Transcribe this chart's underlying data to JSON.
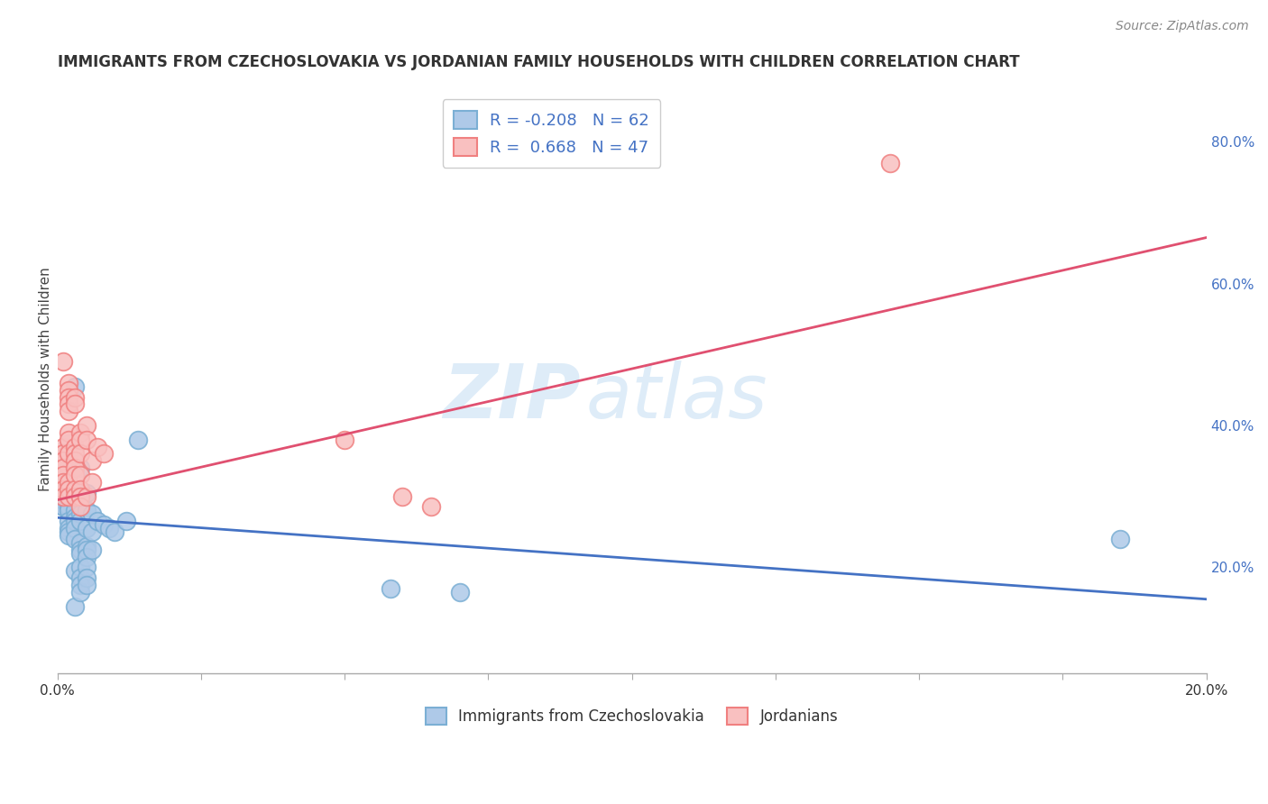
{
  "title": "IMMIGRANTS FROM CZECHOSLOVAKIA VS JORDANIAN FAMILY HOUSEHOLDS WITH CHILDREN CORRELATION CHART",
  "source": "Source: ZipAtlas.com",
  "ylabel": "Family Households with Children",
  "xmin": 0.0,
  "xmax": 0.2,
  "ymin": 0.05,
  "ymax": 0.88,
  "blue_scatter": [
    [
      0.001,
      0.285
    ],
    [
      0.001,
      0.295
    ],
    [
      0.001,
      0.31
    ],
    [
      0.001,
      0.32
    ],
    [
      0.001,
      0.285
    ],
    [
      0.001,
      0.3
    ],
    [
      0.002,
      0.37
    ],
    [
      0.002,
      0.375
    ],
    [
      0.002,
      0.36
    ],
    [
      0.002,
      0.34
    ],
    [
      0.002,
      0.33
    ],
    [
      0.002,
      0.295
    ],
    [
      0.002,
      0.285
    ],
    [
      0.002,
      0.28
    ],
    [
      0.002,
      0.265
    ],
    [
      0.002,
      0.255
    ],
    [
      0.002,
      0.25
    ],
    [
      0.002,
      0.245
    ],
    [
      0.003,
      0.455
    ],
    [
      0.003,
      0.35
    ],
    [
      0.003,
      0.34
    ],
    [
      0.003,
      0.295
    ],
    [
      0.003,
      0.28
    ],
    [
      0.003,
      0.27
    ],
    [
      0.003,
      0.265
    ],
    [
      0.003,
      0.255
    ],
    [
      0.003,
      0.24
    ],
    [
      0.003,
      0.195
    ],
    [
      0.003,
      0.145
    ],
    [
      0.004,
      0.34
    ],
    [
      0.004,
      0.305
    ],
    [
      0.004,
      0.29
    ],
    [
      0.004,
      0.275
    ],
    [
      0.004,
      0.265
    ],
    [
      0.004,
      0.235
    ],
    [
      0.004,
      0.225
    ],
    [
      0.004,
      0.22
    ],
    [
      0.004,
      0.2
    ],
    [
      0.004,
      0.185
    ],
    [
      0.004,
      0.175
    ],
    [
      0.004,
      0.165
    ],
    [
      0.005,
      0.305
    ],
    [
      0.005,
      0.28
    ],
    [
      0.005,
      0.255
    ],
    [
      0.005,
      0.23
    ],
    [
      0.005,
      0.225
    ],
    [
      0.005,
      0.215
    ],
    [
      0.005,
      0.2
    ],
    [
      0.005,
      0.185
    ],
    [
      0.005,
      0.175
    ],
    [
      0.006,
      0.275
    ],
    [
      0.006,
      0.25
    ],
    [
      0.006,
      0.225
    ],
    [
      0.007,
      0.265
    ],
    [
      0.008,
      0.26
    ],
    [
      0.009,
      0.255
    ],
    [
      0.01,
      0.25
    ],
    [
      0.012,
      0.265
    ],
    [
      0.014,
      0.38
    ],
    [
      0.058,
      0.17
    ],
    [
      0.07,
      0.165
    ],
    [
      0.185,
      0.24
    ]
  ],
  "pink_scatter": [
    [
      0.001,
      0.49
    ],
    [
      0.001,
      0.37
    ],
    [
      0.001,
      0.36
    ],
    [
      0.001,
      0.35
    ],
    [
      0.001,
      0.34
    ],
    [
      0.001,
      0.33
    ],
    [
      0.001,
      0.32
    ],
    [
      0.001,
      0.31
    ],
    [
      0.001,
      0.3
    ],
    [
      0.002,
      0.46
    ],
    [
      0.002,
      0.45
    ],
    [
      0.002,
      0.44
    ],
    [
      0.002,
      0.43
    ],
    [
      0.002,
      0.42
    ],
    [
      0.002,
      0.39
    ],
    [
      0.002,
      0.38
    ],
    [
      0.002,
      0.36
    ],
    [
      0.002,
      0.32
    ],
    [
      0.002,
      0.31
    ],
    [
      0.002,
      0.3
    ],
    [
      0.003,
      0.44
    ],
    [
      0.003,
      0.43
    ],
    [
      0.003,
      0.37
    ],
    [
      0.003,
      0.36
    ],
    [
      0.003,
      0.35
    ],
    [
      0.003,
      0.34
    ],
    [
      0.003,
      0.33
    ],
    [
      0.003,
      0.31
    ],
    [
      0.003,
      0.3
    ],
    [
      0.004,
      0.39
    ],
    [
      0.004,
      0.38
    ],
    [
      0.004,
      0.36
    ],
    [
      0.004,
      0.33
    ],
    [
      0.004,
      0.31
    ],
    [
      0.004,
      0.3
    ],
    [
      0.004,
      0.285
    ],
    [
      0.005,
      0.4
    ],
    [
      0.005,
      0.38
    ],
    [
      0.005,
      0.3
    ],
    [
      0.006,
      0.35
    ],
    [
      0.006,
      0.32
    ],
    [
      0.007,
      0.37
    ],
    [
      0.008,
      0.36
    ],
    [
      0.05,
      0.38
    ],
    [
      0.06,
      0.3
    ],
    [
      0.065,
      0.285
    ],
    [
      0.145,
      0.77
    ]
  ],
  "blue_line_x": [
    0.0,
    0.2
  ],
  "blue_line_y": [
    0.27,
    0.155
  ],
  "pink_line_x": [
    0.0,
    0.2
  ],
  "pink_line_y": [
    0.295,
    0.665
  ],
  "blue_color": "#7bafd4",
  "blue_fill": "#aec9e8",
  "pink_color": "#f08080",
  "pink_fill": "#f9c0c0",
  "blue_line_color": "#4472c4",
  "pink_line_color": "#e05070",
  "legend_blue_label": "R = -0.208   N = 62",
  "legend_pink_label": "R =  0.668   N = 47",
  "bottom_legend_blue": "Immigrants from Czechoslovakia",
  "bottom_legend_pink": "Jordanians",
  "watermark_zip": "ZIP",
  "watermark_atlas": "atlas",
  "title_fontsize": 12,
  "source_fontsize": 10,
  "scatter_size": 200
}
